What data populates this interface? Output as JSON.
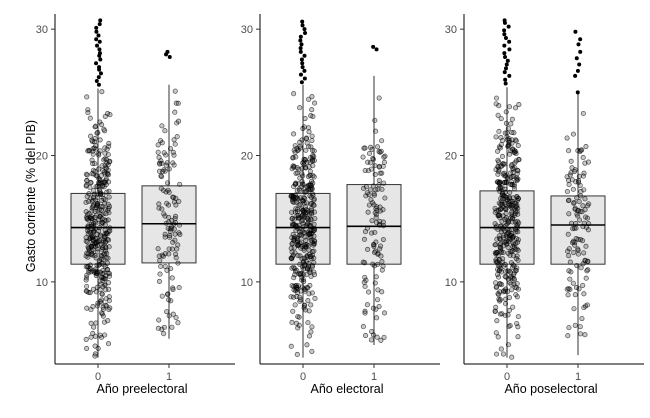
{
  "chart_data": {
    "type": "boxplot",
    "ylabel": "Gasto corriente (% del PIB)",
    "ylim": [
      3.5,
      31.2
    ],
    "yticks": [
      10,
      20,
      30
    ],
    "grid": false,
    "point_color": "#000000",
    "box_fill": "#e6e6e6",
    "panels": [
      {
        "xlabel": "Año preelectoral",
        "categories": [
          "0",
          "1"
        ],
        "boxes": [
          {
            "category": "0",
            "q1": 11.4,
            "median": 14.3,
            "q3": 17.0,
            "whisker_low": 4.0,
            "whisker_high": 25.3,
            "n_points": 380,
            "outliers": [
              25.6,
              25.9,
              26.2,
              26.5,
              26.8,
              27.0,
              27.3,
              27.6,
              27.9,
              28.1,
              28.4,
              28.7,
              29.0,
              29.2,
              29.5,
              29.8,
              30.1,
              30.4,
              30.7
            ]
          },
          {
            "category": "1",
            "q1": 11.5,
            "median": 14.6,
            "q3": 17.6,
            "whisker_low": 5.5,
            "whisker_high": 25.6,
            "n_points": 120,
            "outliers": [
              27.8,
              28.0,
              28.2
            ]
          }
        ]
      },
      {
        "xlabel": "Año electoral",
        "categories": [
          "0",
          "1"
        ],
        "boxes": [
          {
            "category": "0",
            "q1": 11.4,
            "median": 14.3,
            "q3": 17.0,
            "whisker_low": 4.0,
            "whisker_high": 25.6,
            "n_points": 380,
            "outliers": [
              25.8,
              26.1,
              26.4,
              26.7,
              27.0,
              27.3,
              27.6,
              27.9,
              28.2,
              28.5,
              28.8,
              29.1,
              29.4,
              29.7,
              30.0,
              30.3,
              30.6
            ]
          },
          {
            "category": "1",
            "q1": 11.4,
            "median": 14.4,
            "q3": 17.7,
            "whisker_low": 5.0,
            "whisker_high": 26.3,
            "n_points": 120,
            "outliers": [
              28.4,
              28.6
            ]
          }
        ]
      },
      {
        "xlabel": "Año poselectoral",
        "categories": [
          "0",
          "1"
        ],
        "boxes": [
          {
            "category": "0",
            "q1": 11.4,
            "median": 14.3,
            "q3": 17.2,
            "whisker_low": 4.0,
            "whisker_high": 25.4,
            "n_points": 380,
            "outliers": [
              25.7,
              26.0,
              26.3,
              26.6,
              26.9,
              27.2,
              27.5,
              27.8,
              28.1,
              28.4,
              28.7,
              29.0,
              29.3,
              29.6,
              29.9,
              30.2,
              30.5,
              30.7
            ]
          },
          {
            "category": "1",
            "q1": 11.4,
            "median": 14.5,
            "q3": 16.8,
            "whisker_low": 4.2,
            "whisker_high": 24.9,
            "n_points": 120,
            "outliers": [
              25.0,
              26.3,
              26.7,
              27.2,
              27.7,
              28.2,
              28.8,
              29.2,
              29.8
            ]
          }
        ]
      }
    ]
  }
}
